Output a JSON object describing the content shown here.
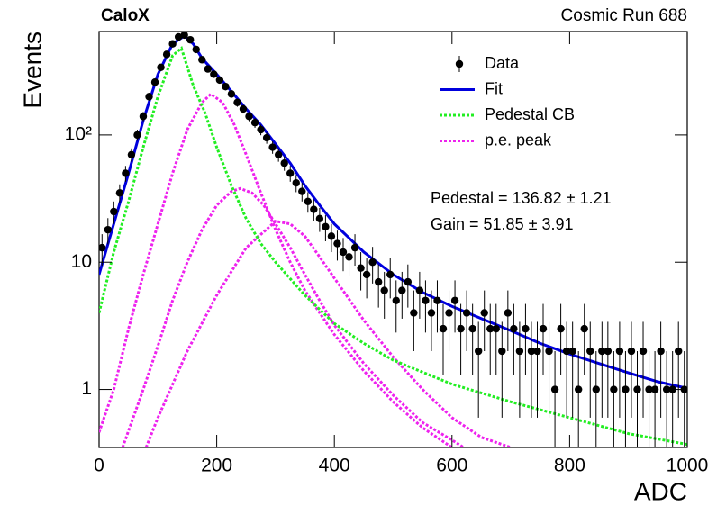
{
  "chart_data": {
    "type": "scatter",
    "title": "CaloX",
    "subtitle": "Cosmic Run 688",
    "x_label": "ADC",
    "y_label": "Events",
    "log_y": true,
    "legend": "upper right",
    "xlim": [
      0,
      1000
    ],
    "xticks": [
      0,
      200,
      400,
      600,
      800,
      1000
    ],
    "ylim": [
      0.35,
      650
    ],
    "yticks": [
      1,
      10,
      {
        "value": 100,
        "label": "10²"
      }
    ],
    "annotations": [
      "Pedestal = 136.82 ± 1.21",
      "Gain = 51.85 ± 3.91"
    ],
    "series": [
      {
        "name": "Data",
        "style": "points",
        "color": "#000000",
        "x": [
          5,
          15,
          25,
          35,
          45,
          55,
          65,
          75,
          85,
          95,
          105,
          115,
          125,
          135,
          145,
          155,
          165,
          175,
          185,
          195,
          205,
          215,
          225,
          235,
          245,
          255,
          265,
          275,
          285,
          295,
          305,
          315,
          325,
          335,
          345,
          355,
          365,
          375,
          385,
          395,
          405,
          415,
          425,
          435,
          445,
          455,
          465,
          475,
          485,
          495,
          505,
          515,
          525,
          535,
          545,
          555,
          565,
          575,
          585,
          595,
          605,
          615,
          625,
          635,
          645,
          655,
          665,
          675,
          685,
          695,
          705,
          715,
          725,
          735,
          745,
          755,
          765,
          775,
          785,
          795,
          805,
          815,
          825,
          835,
          845,
          855,
          865,
          875,
          885,
          895,
          905,
          915,
          925,
          935,
          945,
          955,
          965,
          975,
          985,
          995
        ],
        "values": [
          13,
          18,
          25,
          35,
          50,
          70,
          100,
          140,
          200,
          260,
          340,
          430,
          520,
          590,
          610,
          560,
          470,
          390,
          330,
          300,
          270,
          240,
          210,
          180,
          160,
          140,
          125,
          110,
          95,
          80,
          70,
          60,
          50,
          42,
          36,
          30,
          26,
          22,
          19,
          16,
          14,
          12,
          11,
          13,
          9,
          8,
          10,
          7,
          6,
          8,
          5,
          6,
          7,
          4,
          6,
          5,
          4,
          5,
          3,
          4,
          5,
          3,
          4,
          3,
          2,
          4,
          3,
          3,
          2,
          4,
          3,
          2,
          3,
          2,
          2,
          3,
          2,
          1,
          3,
          2,
          2,
          1,
          3,
          2,
          1,
          2,
          2,
          1,
          2,
          1,
          2,
          1,
          2,
          1,
          1,
          2,
          1,
          1,
          2,
          1
        ],
        "errors": [
          3.6,
          4.2,
          5,
          5.9,
          7.1,
          8.4,
          10,
          11.8,
          14.1,
          16.1,
          18.4,
          20.7,
          22.8,
          24.3,
          24.7,
          23.7,
          21.7,
          19.7,
          18.2,
          17.3,
          16.4,
          15.5,
          14.5,
          13.4,
          12.6,
          11.8,
          11.2,
          10.5,
          9.7,
          8.9,
          8.4,
          7.7,
          7.1,
          6.5,
          6,
          5.5,
          5.1,
          4.7,
          4.4,
          4,
          3.7,
          3.5,
          3.3,
          3.6,
          3,
          2.8,
          3.2,
          2.6,
          2.4,
          2.8,
          2.2,
          2.4,
          2.6,
          2,
          2.4,
          2.2,
          2,
          2.2,
          1.7,
          2,
          2.2,
          1.7,
          2,
          1.7,
          1.4,
          2,
          1.7,
          1.7,
          1.4,
          2,
          1.7,
          1.4,
          1.7,
          1.4,
          1.4,
          1.7,
          1.4,
          1,
          1.7,
          1.4,
          1.4,
          1,
          1.7,
          1.4,
          1,
          1.4,
          1.4,
          1,
          1.4,
          1,
          1.4,
          1,
          1.4,
          1,
          1,
          1.4,
          1,
          1,
          1.4,
          1
        ]
      },
      {
        "name": "Fit",
        "style": "line",
        "color": "#0000dd",
        "x": [
          0,
          25,
          50,
          75,
          100,
          125,
          145,
          160,
          175,
          200,
          225,
          250,
          275,
          300,
          325,
          350,
          375,
          400,
          450,
          500,
          550,
          600,
          650,
          700,
          750,
          800,
          850,
          900,
          950,
          1000
        ],
        "values": [
          8,
          20,
          50,
          130,
          300,
          520,
          600,
          520,
          400,
          300,
          220,
          160,
          120,
          85,
          60,
          40,
          28,
          20,
          12,
          8,
          5.8,
          4.5,
          3.6,
          2.9,
          2.3,
          1.9,
          1.6,
          1.35,
          1.15,
          1.02
        ]
      },
      {
        "name": "Pedestal CB",
        "style": "dotted",
        "color": "#22ee22",
        "x": [
          0,
          25,
          50,
          75,
          100,
          125,
          140,
          160,
          180,
          200,
          225,
          250,
          275,
          300,
          350,
          400,
          450,
          500,
          600,
          700,
          800,
          900,
          1000
        ],
        "values": [
          4,
          12,
          30,
          80,
          200,
          420,
          480,
          245,
          150,
          80,
          40,
          22,
          14,
          10,
          5.5,
          3.3,
          2.3,
          1.7,
          1.1,
          0.8,
          0.6,
          0.45,
          0.37
        ]
      },
      {
        "name": "p.e. peak",
        "style": "dotted",
        "color": "#ee22ee",
        "x": [
          0,
          25,
          50,
          75,
          100,
          125,
          150,
          175,
          190,
          210,
          230,
          250,
          275,
          300,
          325,
          350,
          375,
          400,
          450,
          500,
          550,
          600
        ],
        "values": [
          0.46,
          1,
          3,
          8,
          20,
          50,
          110,
          180,
          210,
          180,
          120,
          70,
          35,
          18,
          10,
          6,
          4,
          2.7,
          1.4,
          0.8,
          0.5,
          0.35
        ]
      },
      {
        "style": "dotted",
        "color": "#ee22ee",
        "x": [
          40,
          75,
          100,
          125,
          150,
          175,
          200,
          225,
          240,
          260,
          280,
          300,
          325,
          350,
          375,
          400,
          450,
          500,
          550,
          600,
          620
        ],
        "values": [
          0.35,
          1,
          2.2,
          5,
          10,
          18,
          28,
          36,
          38,
          35,
          28,
          20,
          13,
          8,
          5,
          3.2,
          1.6,
          0.9,
          0.55,
          0.4,
          0.35
        ]
      },
      {
        "style": "dotted",
        "color": "#ee22ee",
        "x": [
          80,
          100,
          150,
          200,
          250,
          300,
          325,
          350,
          375,
          400,
          450,
          500,
          550,
          600,
          650,
          700
        ],
        "values": [
          0.35,
          0.6,
          2,
          5.5,
          13,
          21,
          20,
          16,
          11,
          7.5,
          3.5,
          1.8,
          1,
          0.6,
          0.42,
          0.35
        ]
      }
    ]
  }
}
